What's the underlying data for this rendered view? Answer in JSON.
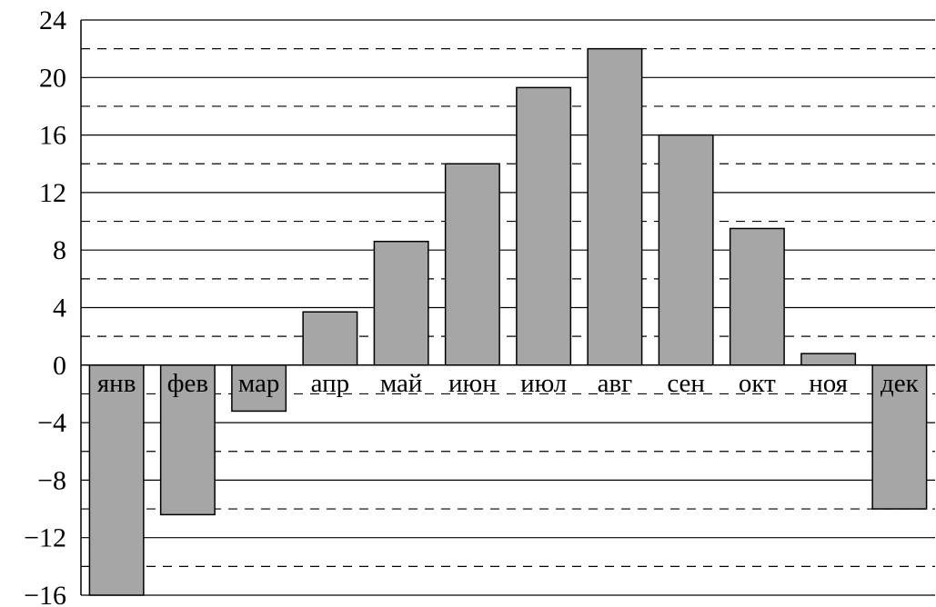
{
  "chart_data": {
    "type": "bar",
    "categories": [
      "янв",
      "фев",
      "мар",
      "апр",
      "май",
      "июн",
      "июл",
      "авг",
      "сен",
      "окт",
      "ноя",
      "дек"
    ],
    "values": [
      -16,
      -10.4,
      -3.2,
      3.7,
      8.6,
      14,
      19.3,
      22,
      16,
      9.5,
      0.8,
      -10
    ],
    "title": "",
    "xlabel": "",
    "ylabel": "",
    "ylim": [
      -16,
      24
    ],
    "yticks": [
      24,
      20,
      16,
      12,
      8,
      4,
      0,
      -4,
      -8,
      -12,
      -16
    ],
    "ytick_labels": [
      "24",
      "20",
      "16",
      "12",
      "8",
      "4",
      "0",
      "−4",
      "−8",
      "−12",
      "−16"
    ],
    "minor_grid": [
      22,
      18,
      14,
      10,
      6,
      2,
      -2,
      -6,
      -10,
      -14
    ],
    "grid": true,
    "bar_color": "#a6a6a6"
  }
}
